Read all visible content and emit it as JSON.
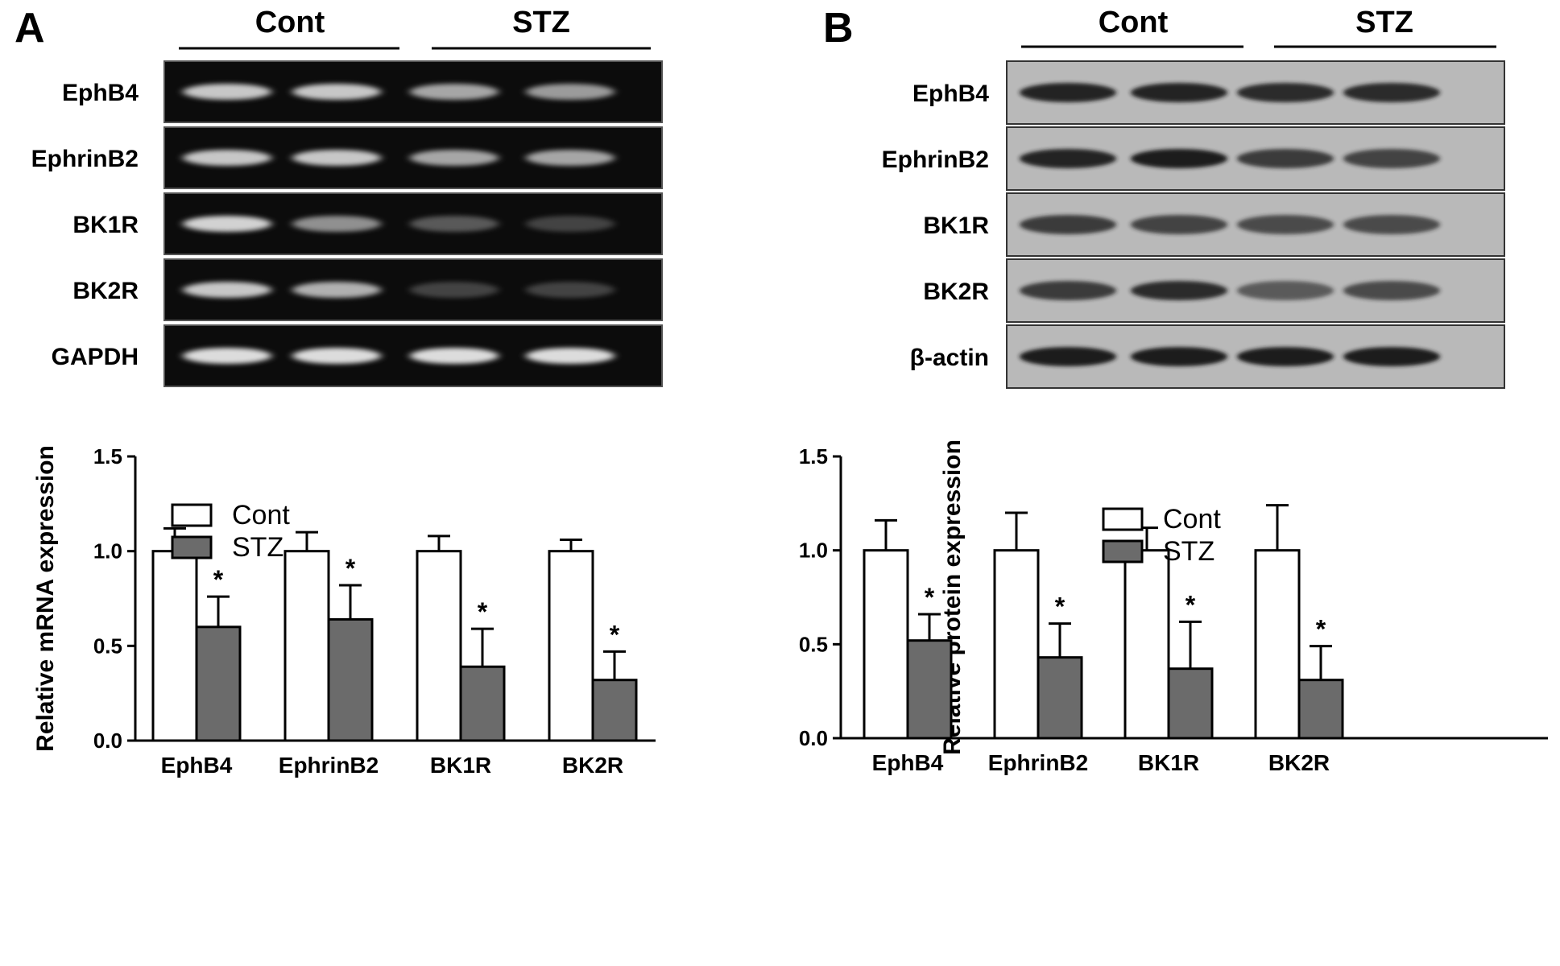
{
  "panels": {
    "A": {
      "letter": "A",
      "groups": [
        "Cont",
        "STZ"
      ],
      "blot_rows": [
        "EphB4",
        "EphrinB2",
        "BK1R",
        "BK2R",
        "GAPDH"
      ],
      "blot_style": "gel"
    },
    "B": {
      "letter": "B",
      "groups": [
        "Cont",
        "STZ"
      ],
      "blot_rows": [
        "EphB4",
        "EphrinB2",
        "BK1R",
        "BK2R",
        "β-actin"
      ],
      "blot_style": "western"
    }
  },
  "colors": {
    "cont": "#ffffff",
    "stz": "#6b6b6b",
    "axis": "#000000"
  },
  "chart_data": [
    {
      "type": "bar",
      "categories": [
        "EphB4",
        "EphrinB2",
        "BK1R",
        "BK2R"
      ],
      "series": [
        {
          "name": "Cont",
          "values": [
            1.0,
            1.0,
            1.0,
            1.0
          ],
          "errors": [
            0.12,
            0.1,
            0.08,
            0.06
          ]
        },
        {
          "name": "STZ",
          "values": [
            0.6,
            0.64,
            0.39,
            0.32
          ],
          "errors": [
            0.16,
            0.18,
            0.2,
            0.15
          ]
        }
      ],
      "significance": [
        "*",
        "*",
        "*",
        "*"
      ],
      "title": "",
      "xlabel": "",
      "ylabel": "Relative mRNA expression",
      "ylim": [
        0,
        1.5
      ],
      "yticks": [
        "0.0",
        "0.5",
        "1.0",
        "1.5"
      ],
      "legend": "top-left",
      "grid": false
    },
    {
      "type": "bar",
      "categories": [
        "EphB4",
        "EphrinB2",
        "BK1R",
        "BK2R"
      ],
      "series": [
        {
          "name": "Cont",
          "values": [
            1.0,
            1.0,
            1.0,
            1.0
          ],
          "errors": [
            0.16,
            0.2,
            0.12,
            0.24
          ]
        },
        {
          "name": "STZ",
          "values": [
            0.52,
            0.43,
            0.37,
            0.31
          ],
          "errors": [
            0.14,
            0.18,
            0.25,
            0.18
          ]
        }
      ],
      "significance": [
        "*",
        "*",
        "*",
        "*"
      ],
      "title": "",
      "xlabel": "",
      "ylabel": "Relative protein expression",
      "ylim": [
        0,
        1.5
      ],
      "yticks": [
        "0.0",
        "0.5",
        "1.0",
        "1.5"
      ],
      "legend": "top-left",
      "grid": false
    }
  ]
}
